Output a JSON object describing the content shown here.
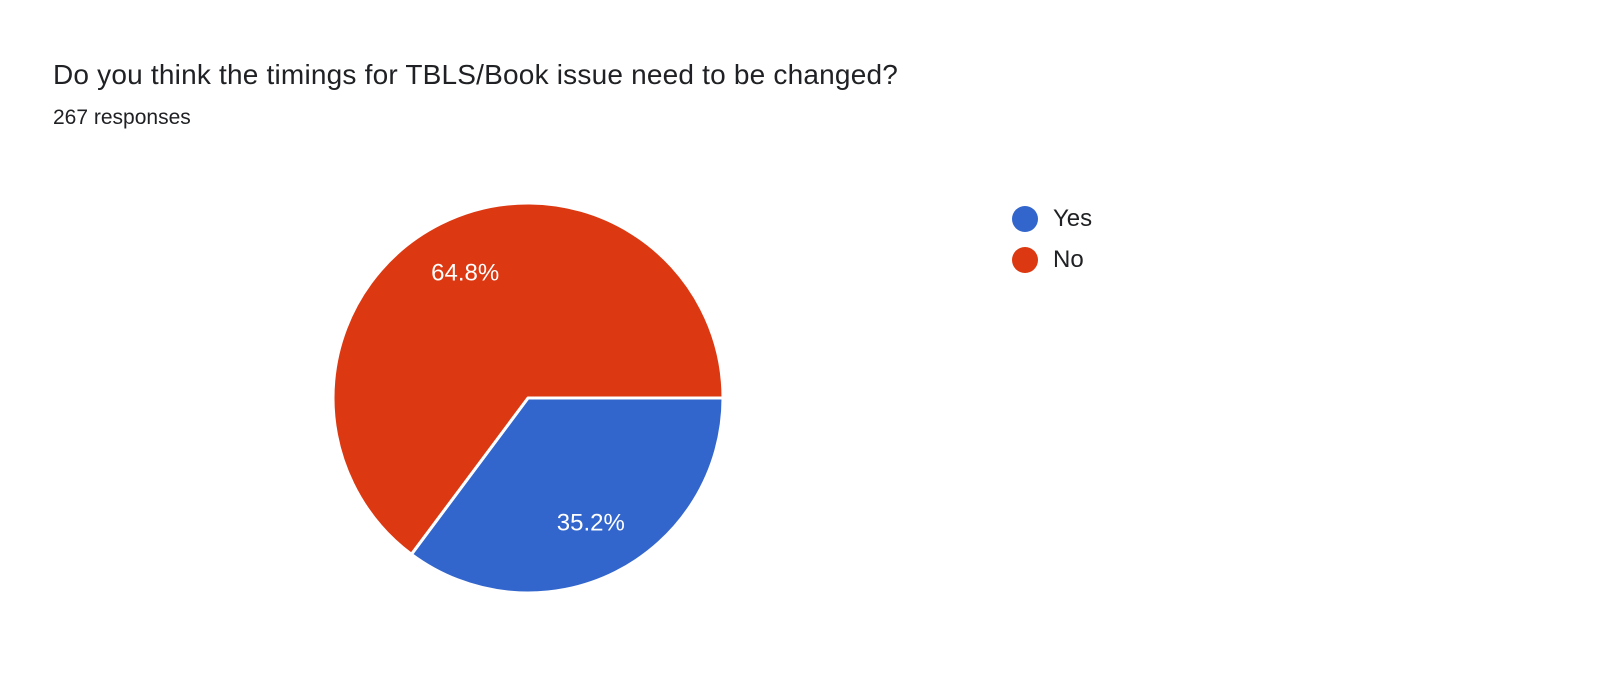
{
  "header": {
    "title": "Do you think the timings for TBLS/Book issue need to be changed?",
    "responses": "267 responses"
  },
  "chart_data": {
    "type": "pie",
    "title": "Do you think the timings for TBLS/Book issue need to be changed?",
    "subtitle": "267 responses",
    "total_responses": 267,
    "start_angle_deg": 0,
    "direction": "clockwise",
    "legend_position": "right",
    "background_color": "#ffffff",
    "slice_separator_color": "#ffffff",
    "label_text_color": "#ffffff",
    "slices": [
      {
        "label": "Yes",
        "percent": 35.2,
        "display": "35.2%",
        "color": "#3366CC"
      },
      {
        "label": "No",
        "percent": 64.8,
        "display": "64.8%",
        "color": "#DC3912"
      }
    ]
  },
  "legend": {
    "items": [
      {
        "label": "Yes",
        "color": "#3366CC"
      },
      {
        "label": "No",
        "color": "#DC3912"
      }
    ]
  }
}
